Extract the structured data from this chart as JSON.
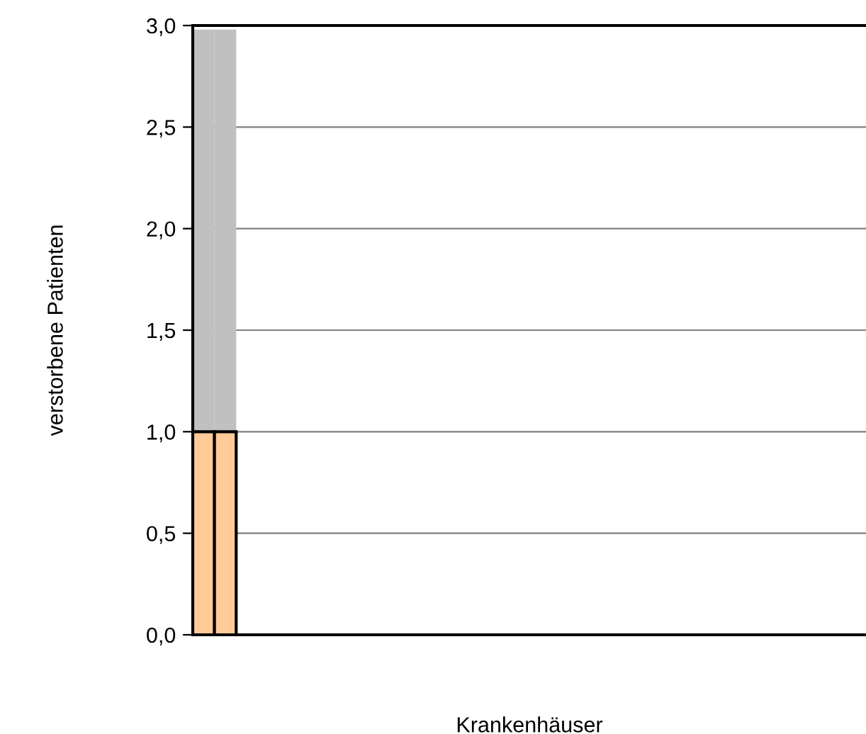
{
  "chart_data": {
    "type": "bar",
    "stacked": true,
    "xlabel": "Krankenhäuser",
    "ylabel": "verstorbene Patienten",
    "categories": [
      null,
      null,
      null,
      null,
      null,
      null,
      null,
      null,
      null,
      null,
      null,
      null,
      null,
      null,
      null,
      null,
      null,
      null,
      null,
      null,
      null,
      null,
      null,
      null,
      null,
      null,
      null,
      null,
      null,
      null,
      null
    ],
    "series": [
      {
        "color": "#ffcc99",
        "values": [
          1.0,
          1.0,
          null,
          null,
          null,
          null,
          null,
          null,
          null,
          null,
          null,
          null,
          null,
          null,
          null,
          null,
          null,
          null,
          null,
          null,
          null,
          null,
          null,
          null,
          null,
          null,
          null,
          null,
          null,
          null,
          null
        ]
      },
      {
        "color": "#c0c0c0",
        "values": [
          1.98,
          1.98,
          null,
          null,
          null,
          null,
          null,
          null,
          null,
          null,
          null,
          null,
          null,
          null,
          null,
          null,
          null,
          null,
          null,
          null,
          null,
          null,
          null,
          null,
          null,
          null,
          null,
          null,
          null,
          null,
          null
        ]
      }
    ],
    "ylim": [
      0,
      3.0
    ],
    "yticks": [
      {
        "value": 0,
        "label": "0,0"
      },
      {
        "value": 0.5,
        "label": "0,5"
      },
      {
        "value": 1.0,
        "label": "1,0"
      },
      {
        "value": 1.5,
        "label": "1,5"
      },
      {
        "value": 2.0,
        "label": "2,0"
      },
      {
        "value": 2.5,
        "label": "2,5"
      },
      {
        "value": 3.0,
        "label": "3,0"
      }
    ],
    "grid": "y",
    "legend": false
  }
}
